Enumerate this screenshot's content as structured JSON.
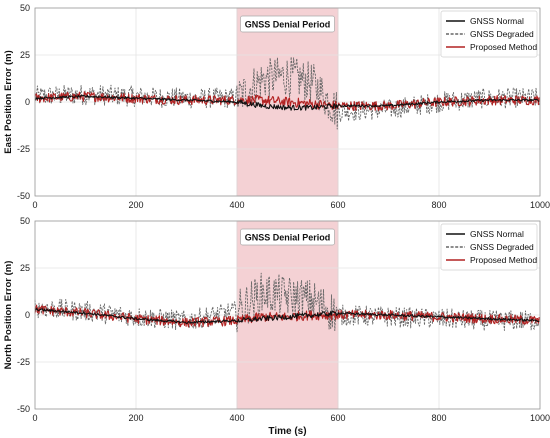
{
  "chart_data": [
    {
      "type": "line",
      "ylabel": "East Position Error (m)",
      "xlabel": "",
      "xlim": [
        0,
        1000
      ],
      "ylim": [
        -50,
        50
      ],
      "xticks": [
        0,
        200,
        400,
        600,
        800,
        1000
      ],
      "yticks": [
        -50,
        -25,
        0,
        25,
        50
      ],
      "grid": true,
      "legend_position": "top-right",
      "shaded_region": {
        "x_start": 400,
        "x_end": 600,
        "label": "GNSS Denial Period",
        "color": "#f2c9cc"
      },
      "series": [
        {
          "name": "GNSS Normal",
          "color": "#111111",
          "style": "solid",
          "x": [
            0,
            100,
            200,
            300,
            400,
            450,
            500,
            550,
            600,
            700,
            800,
            900,
            1000
          ],
          "y": [
            2,
            3,
            2,
            1,
            0,
            -2,
            -3,
            -3,
            -2,
            -2,
            0,
            1,
            1
          ]
        },
        {
          "name": "GNSS Degraded",
          "color": "#666666",
          "style": "dashed",
          "x": [
            0,
            100,
            200,
            300,
            400,
            450,
            500,
            550,
            600,
            700,
            800,
            900,
            1000
          ],
          "y": [
            3,
            4,
            3,
            2,
            2,
            12,
            14,
            10,
            -5,
            -4,
            0,
            2,
            2
          ]
        },
        {
          "name": "Proposed Method",
          "color": "#b22222",
          "style": "solid",
          "x": [
            0,
            100,
            200,
            300,
            400,
            450,
            500,
            550,
            600,
            700,
            800,
            900,
            1000
          ],
          "y": [
            2,
            3,
            2,
            1,
            1,
            1,
            0,
            -1,
            -2,
            -2,
            0,
            1,
            1
          ]
        }
      ]
    },
    {
      "type": "line",
      "ylabel": "North Position Error (m)",
      "xlabel": "Time (s)",
      "xlim": [
        0,
        1000
      ],
      "ylim": [
        -50,
        50
      ],
      "xticks": [
        0,
        200,
        400,
        600,
        800,
        1000
      ],
      "yticks": [
        -50,
        -25,
        0,
        25,
        50
      ],
      "grid": true,
      "legend_position": "top-right",
      "shaded_region": {
        "x_start": 400,
        "x_end": 600,
        "label": "GNSS Denial Period",
        "color": "#f2c9cc"
      },
      "series": [
        {
          "name": "GNSS Normal",
          "color": "#111111",
          "style": "solid",
          "x": [
            0,
            100,
            200,
            300,
            400,
            450,
            500,
            550,
            600,
            700,
            800,
            900,
            1000
          ],
          "y": [
            3,
            1,
            -2,
            -4,
            -3,
            -2,
            -1,
            0,
            1,
            0,
            -1,
            -2,
            -3
          ]
        },
        {
          "name": "GNSS Degraded",
          "color": "#666666",
          "style": "dashed",
          "x": [
            0,
            100,
            200,
            300,
            400,
            450,
            500,
            550,
            600,
            700,
            800,
            900,
            1000
          ],
          "y": [
            4,
            2,
            -1,
            -3,
            2,
            12,
            10,
            8,
            0,
            -1,
            -2,
            -3,
            -3
          ]
        },
        {
          "name": "Proposed Method",
          "color": "#b22222",
          "style": "solid",
          "x": [
            0,
            100,
            200,
            300,
            400,
            450,
            500,
            550,
            600,
            700,
            800,
            900,
            1000
          ],
          "y": [
            3,
            1,
            -2,
            -4,
            -3,
            -1,
            -1,
            0,
            0,
            0,
            -1,
            -2,
            -3
          ]
        }
      ]
    }
  ]
}
